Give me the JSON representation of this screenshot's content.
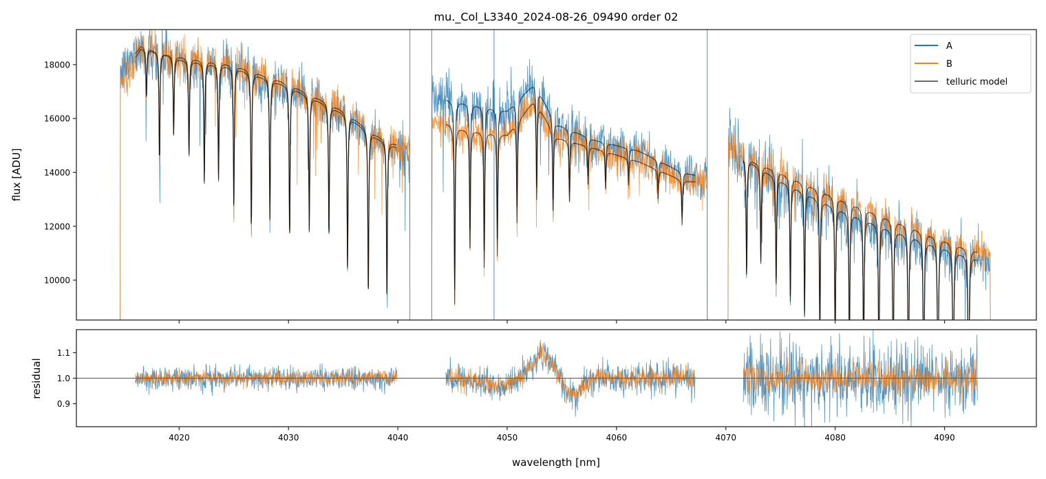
{
  "chart_data": [
    {
      "panel": "flux",
      "type": "line",
      "title": "mu._Col_L3340_2024-08-26_09490  order 02",
      "xlabel": "",
      "ylabel": "flux [ADU]",
      "xlim": [
        4010.6,
        4098.4
      ],
      "ylim": [
        8520,
        19300
      ],
      "xticks": [
        4020,
        4030,
        4040,
        4050,
        4060,
        4070,
        4080,
        4090
      ],
      "xtick_labels_visible": false,
      "yticks": [
        10000,
        12000,
        14000,
        16000,
        18000
      ],
      "ytick_labels": [
        "10000",
        "12000",
        "14000",
        "16000",
        "18000"
      ],
      "grid": false,
      "legend": {
        "placement": "top-right",
        "entries": [
          {
            "label": "A",
            "color": "#1f77b4"
          },
          {
            "label": "B",
            "color": "#ff7f0e"
          },
          {
            "label": "telluric model",
            "color": "#6b6b6b"
          }
        ]
      },
      "segments": [
        {
          "x_range": [
            4014.6,
            4041.1
          ],
          "model_range": [
            4016.0,
            4039.9
          ]
        },
        {
          "x_range": [
            4043.1,
            4068.3
          ],
          "model_range": [
            4044.4,
            4067.2
          ]
        },
        {
          "x_range": [
            4070.2,
            4094.2
          ],
          "model_range": [
            4071.6,
            4093.0
          ]
        }
      ],
      "series": [
        {
          "name": "A",
          "color": "#1f77b4",
          "continuum": [
            [
              4014.6,
              17600
            ],
            [
              4016.5,
              18700
            ],
            [
              4020,
              18200
            ],
            [
              4025,
              17900
            ],
            [
              4030,
              17200
            ],
            [
              4035,
              16200
            ],
            [
              4038,
              15300
            ],
            [
              4041.1,
              14700
            ],
            [
              4043.1,
              16800
            ],
            [
              4046,
              16600
            ],
            [
              4050,
              16300
            ],
            [
              4052.5,
              17300
            ],
            [
              4054.5,
              15800
            ],
            [
              4058,
              15200
            ],
            [
              4062,
              14800
            ],
            [
              4066,
              14000
            ],
            [
              4068.3,
              13800
            ],
            [
              4070.2,
              14900
            ],
            [
              4075,
              13700
            ],
            [
              4080,
              12700
            ],
            [
              4085,
              11900
            ],
            [
              4090,
              11200
            ],
            [
              4094.2,
              10600
            ]
          ],
          "noise_frac": [
            0.025,
            0.03,
            0.045
          ]
        },
        {
          "name": "B",
          "color": "#ff7f0e",
          "continuum": [
            [
              4014.6,
              17300
            ],
            [
              4016.5,
              18600
            ],
            [
              4020,
              18300
            ],
            [
              4025,
              18000
            ],
            [
              4030,
              17300
            ],
            [
              4035,
              16300
            ],
            [
              4038,
              15400
            ],
            [
              4041.1,
              14800
            ],
            [
              4043.1,
              16000
            ],
            [
              4046,
              15600
            ],
            [
              4050,
              15400
            ],
            [
              4052.5,
              16700
            ],
            [
              4054.5,
              15300
            ],
            [
              4058,
              14900
            ],
            [
              4062,
              14400
            ],
            [
              4066,
              13700
            ],
            [
              4068.3,
              13600
            ],
            [
              4070.2,
              14800
            ],
            [
              4075,
              14000
            ],
            [
              4080,
              13100
            ],
            [
              4085,
              12300
            ],
            [
              4090,
              11500
            ],
            [
              4094.2,
              10900
            ]
          ],
          "noise_frac": [
            0.02,
            0.022,
            0.025
          ]
        },
        {
          "name": "telluric model",
          "color": "#6b6b6b",
          "line_centers": [
            4017.0,
            4018.2,
            4019.5,
            4020.9,
            4022.3,
            4023.6,
            4025.0,
            4026.6,
            4028.3,
            4030.1,
            4031.9,
            4033.7,
            4035.4,
            4037.3,
            4039.0,
            4045.2,
            4046.6,
            4047.9,
            4049.1,
            4050.9,
            4052.7,
            4054.2,
            4055.7,
            4057.4,
            4059.0,
            4061.1,
            4063.8,
            4066.0,
            4071.9,
            4073.2,
            4074.6,
            4075.9,
            4077.2,
            4078.6,
            4080.0,
            4081.3,
            4082.6,
            4084.0,
            4085.3,
            4086.7,
            4088.1,
            4089.4,
            4090.8,
            4092.2
          ],
          "line_depths": [
            0.1,
            0.22,
            0.16,
            0.2,
            0.25,
            0.24,
            0.3,
            0.33,
            0.3,
            0.33,
            0.3,
            0.3,
            0.36,
            0.4,
            0.38,
            0.42,
            0.3,
            0.33,
            0.3,
            0.24,
            0.22,
            0.2,
            0.15,
            0.1,
            0.1,
            0.07,
            0.08,
            0.12,
            0.3,
            0.25,
            0.3,
            0.33,
            0.35,
            0.4,
            0.42,
            0.45,
            0.48,
            0.52,
            0.55,
            0.58,
            0.6,
            0.62,
            0.63,
            0.65
          ]
        }
      ]
    },
    {
      "panel": "residual",
      "type": "line",
      "title": "",
      "xlabel": "wavelength [nm]",
      "ylabel": "residual",
      "xlim": [
        4010.6,
        4098.4
      ],
      "ylim": [
        0.81,
        1.19
      ],
      "xticks": [
        4020,
        4030,
        4040,
        4050,
        4060,
        4070,
        4080,
        4090
      ],
      "xtick_labels": [
        "4020",
        "4030",
        "4040",
        "4050",
        "4060",
        "4070",
        "4080",
        "4090"
      ],
      "yticks": [
        0.9,
        1.0,
        1.1
      ],
      "ytick_labels": [
        "0.9",
        "1.0",
        "1.1"
      ],
      "reference_line": 1.0,
      "grid": false,
      "series": [
        {
          "name": "A",
          "color": "#1f77b4",
          "noise": [
            0.022,
            0.03,
            0.07
          ]
        },
        {
          "name": "B",
          "color": "#ff7f0e",
          "noise": [
            0.015,
            0.02,
            0.03
          ]
        }
      ],
      "features": [
        {
          "segment": 1,
          "shape": "bump",
          "center": 4053.2,
          "amplitude": 0.09,
          "width": 1.3
        },
        {
          "segment": 1,
          "shape": "dip",
          "center": 4056.0,
          "amplitude": -0.06,
          "width": 1.2
        },
        {
          "segment": 1,
          "shape": "dip",
          "center": 4049.0,
          "amplitude": -0.03,
          "width": 1.8
        }
      ]
    }
  ]
}
